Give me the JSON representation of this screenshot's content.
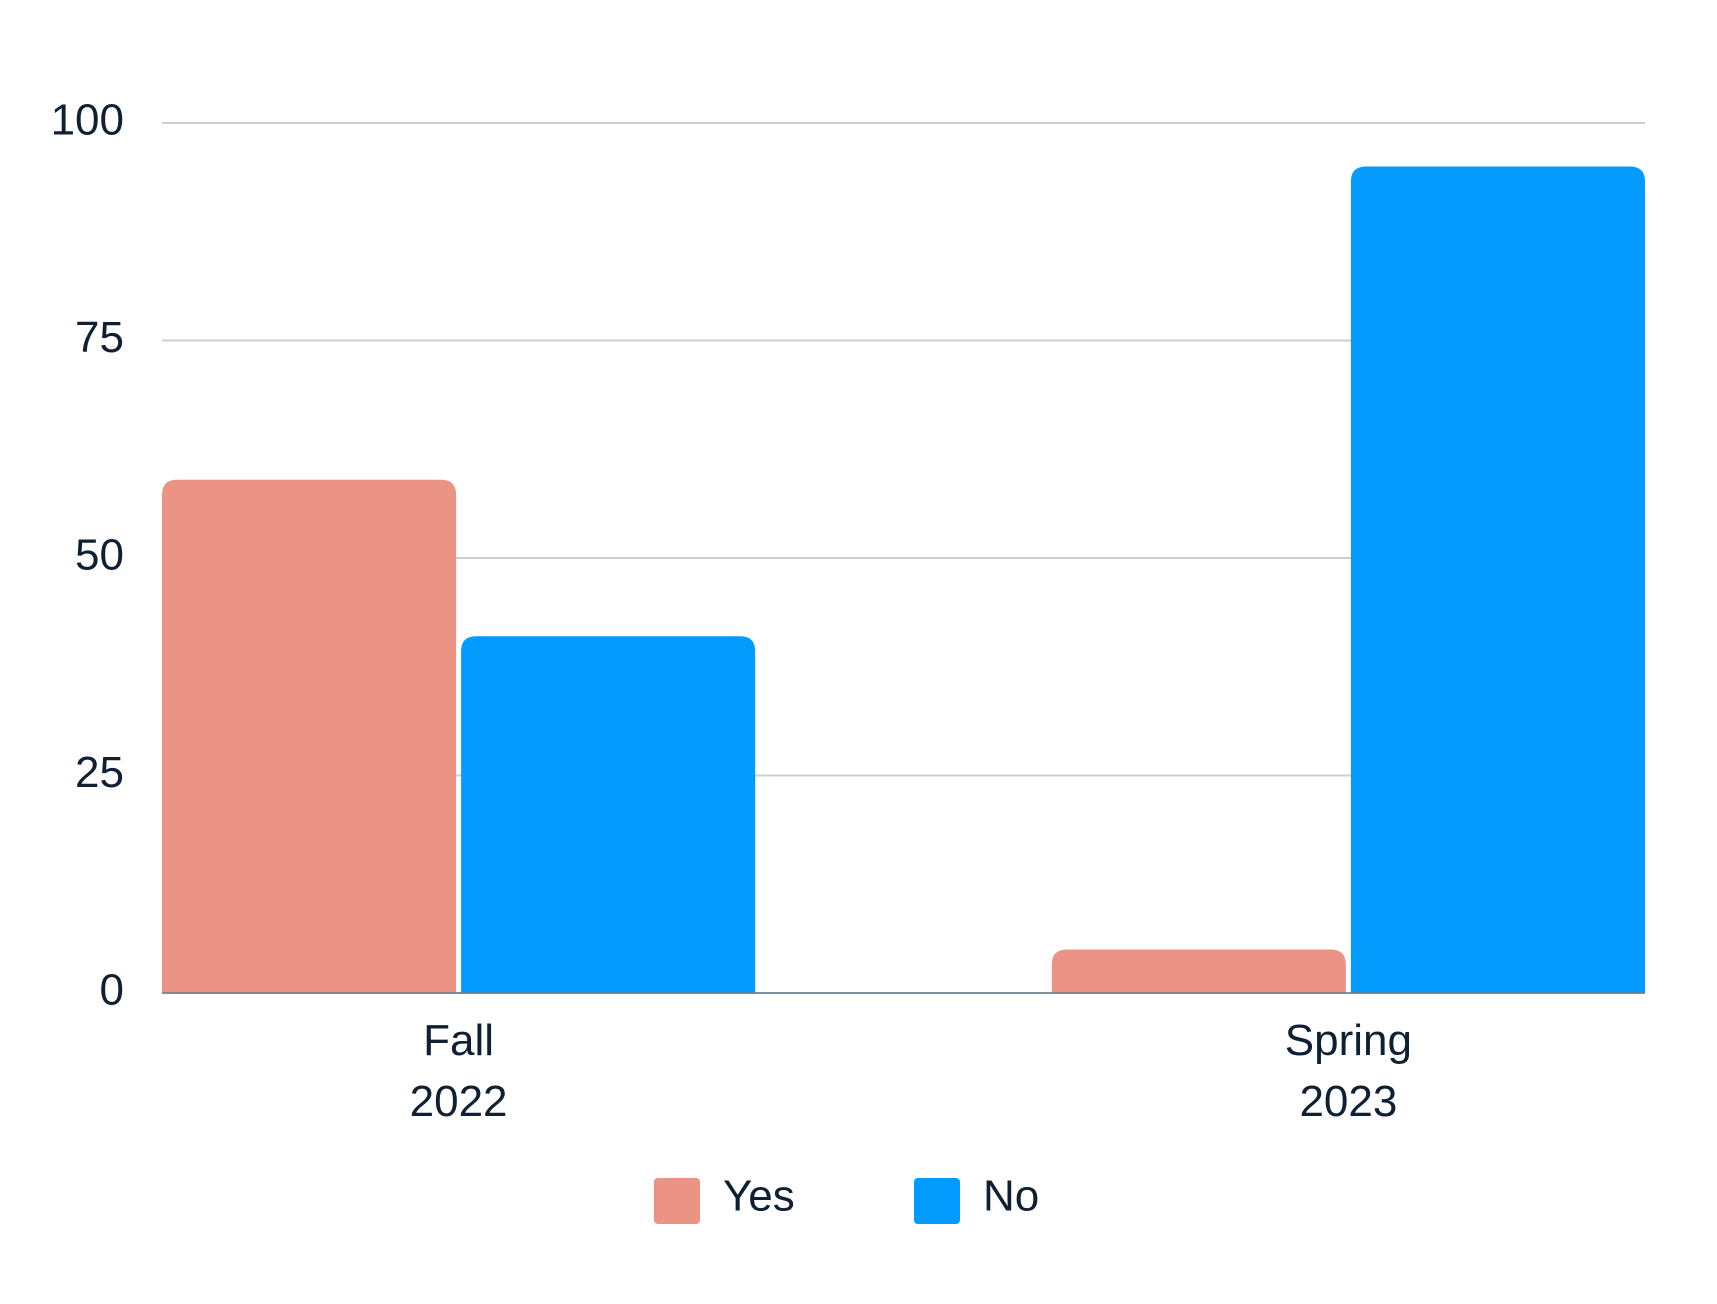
{
  "chart_data": {
    "type": "bar",
    "categories": [
      "Fall 2022",
      "Spring 2023"
    ],
    "series": [
      {
        "name": "Yes",
        "color": "#eb9384",
        "values": [
          59,
          5
        ]
      },
      {
        "name": "No",
        "color": "#039bfd",
        "values": [
          41,
          95
        ]
      }
    ],
    "ylim": [
      0,
      100
    ],
    "yticks": [
      0,
      25,
      50,
      75,
      100
    ],
    "grid": true,
    "legend": "bottom"
  }
}
